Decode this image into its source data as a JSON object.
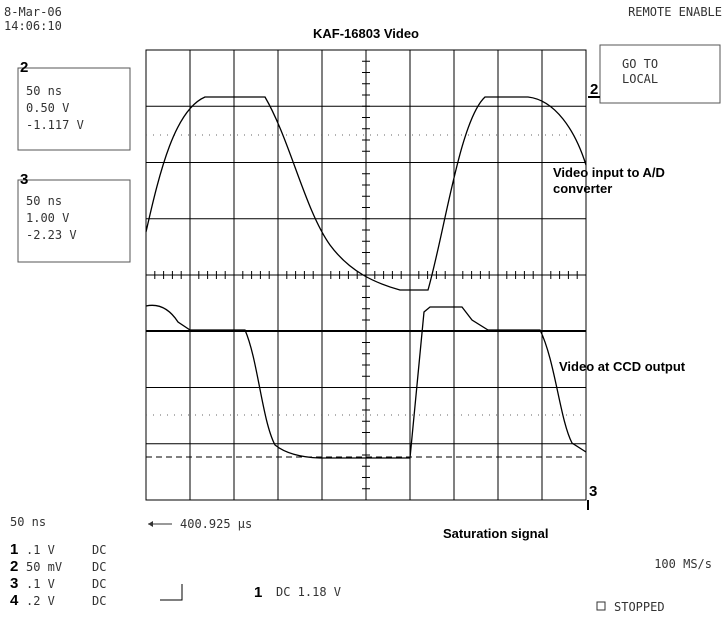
{
  "header": {
    "date": "8-Mar-06",
    "time": "14:06:10",
    "title": "KAF-16803 Video",
    "status": "REMOTE ENABLE"
  },
  "button": {
    "line1": "GO TO",
    "line2": "LOCAL"
  },
  "channel_boxes": [
    {
      "number": "2",
      "timebase": "50 ns",
      "scale": "0.50 V",
      "offset": "-1.117 V"
    },
    {
      "number": "3",
      "timebase": "50 ns",
      "scale": "1.00 V",
      "offset": "-2.23 V"
    }
  ],
  "trace_markers": [
    "2",
    "3"
  ],
  "annotations": {
    "video_input_line1": "Video input to A/D",
    "video_input_line2": "converter",
    "ccd_output": "Video at CCD output",
    "saturation": "Saturation signal"
  },
  "footer": {
    "timebase": "50 ns",
    "delay": "400.925 µs",
    "sample_rate": "100 MS/s",
    "state": "STOPPED",
    "trigger": {
      "channel": "1",
      "setting": "DC 1.18 V"
    },
    "channels": [
      {
        "number": "1",
        "scale": ".1  V",
        "coupling": "DC"
      },
      {
        "number": "2",
        "scale": "50 mV",
        "coupling": "DC"
      },
      {
        "number": "3",
        "scale": ".1  V",
        "coupling": "DC"
      },
      {
        "number": "4",
        "scale": ".2  V",
        "coupling": "DC"
      }
    ]
  }
}
